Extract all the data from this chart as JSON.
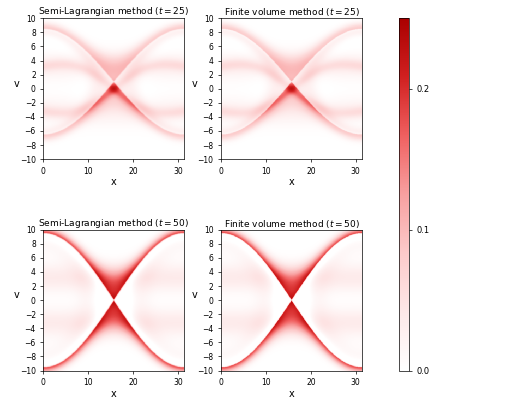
{
  "titles": [
    "Semi-Lagrangian method ($t = 25$)",
    "Finite volume method ($t = 25$)",
    "Semi-Lagrangian method ($t = 50$)",
    "Finite volume method ($t = 50$)"
  ],
  "L": 31.41592653589793,
  "v_min": -10,
  "v_max": 10,
  "xticks": [
    0,
    10,
    20,
    30
  ],
  "yticks": [
    -10,
    -8,
    -6,
    -4,
    -2,
    0,
    2,
    4,
    6,
    8,
    10
  ],
  "xlabel": "x",
  "ylabel": "v",
  "cmap_vmin": 0.0,
  "cmap_vmax": 0.25,
  "colorbar_ticks": [
    0,
    0.1,
    0.2
  ],
  "background_color": "#ffffff",
  "figsize": [
    5.11,
    4.05
  ],
  "dpi": 100,
  "v0": 3.5,
  "sigma": 1.5
}
